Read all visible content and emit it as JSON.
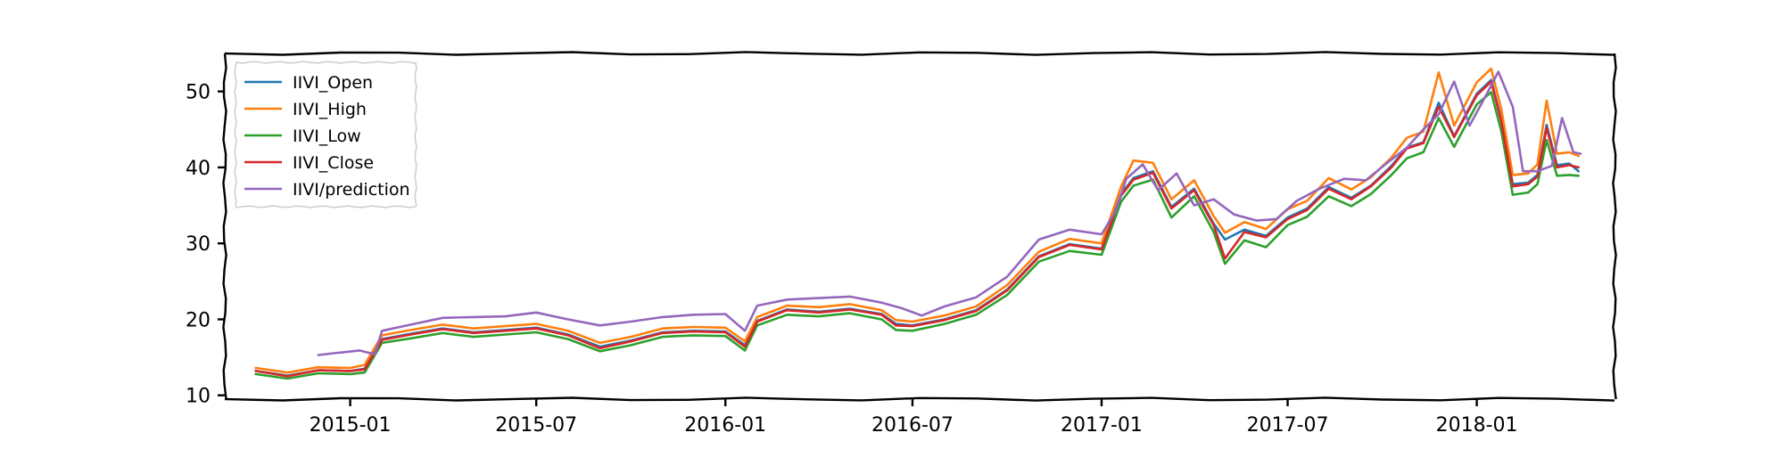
{
  "chart_data": {
    "type": "line",
    "x_type": "date",
    "xlim": [
      "2014-09-01",
      "2018-05-15"
    ],
    "ylim": [
      9.5,
      55.0
    ],
    "x_ticks": [
      "2015-01",
      "2015-07",
      "2016-01",
      "2016-07",
      "2017-01",
      "2017-07",
      "2018-01"
    ],
    "y_ticks": [
      10,
      20,
      30,
      40,
      50
    ],
    "grid": false,
    "legend_position": "top-left",
    "style": "xkcd",
    "series": [
      {
        "name": "IIVI_Open",
        "color": "#1f77b4",
        "x": [
          "2014-10-01",
          "2014-11-01",
          "2014-12-01",
          "2015-01-01",
          "2015-01-15",
          "2015-02-01",
          "2015-03-01",
          "2015-04-01",
          "2015-05-01",
          "2015-06-01",
          "2015-07-01",
          "2015-08-01",
          "2015-09-01",
          "2015-10-01",
          "2015-11-01",
          "2015-12-01",
          "2016-01-01",
          "2016-01-20",
          "2016-02-01",
          "2016-03-01",
          "2016-04-01",
          "2016-05-01",
          "2016-06-01",
          "2016-06-15",
          "2016-07-01",
          "2016-08-01",
          "2016-09-01",
          "2016-10-01",
          "2016-11-01",
          "2016-12-01",
          "2017-01-01",
          "2017-01-20",
          "2017-02-01",
          "2017-02-20",
          "2017-03-10",
          "2017-04-01",
          "2017-04-20",
          "2017-05-01",
          "2017-05-20",
          "2017-06-10",
          "2017-07-01",
          "2017-07-20",
          "2017-08-10",
          "2017-09-01",
          "2017-09-20",
          "2017-10-10",
          "2017-10-25",
          "2017-11-10",
          "2017-11-25",
          "2017-12-10",
          "2018-01-01",
          "2018-01-15",
          "2018-01-25",
          "2018-02-05",
          "2018-02-20",
          "2018-03-01",
          "2018-03-10",
          "2018-03-20",
          "2018-04-01",
          "2018-04-10"
        ],
        "y": [
          13.2,
          12.6,
          13.3,
          13.2,
          13.5,
          17.4,
          18.1,
          18.8,
          18.3,
          18.6,
          18.9,
          18.0,
          16.4,
          17.2,
          18.3,
          18.5,
          18.4,
          16.6,
          19.8,
          21.3,
          21.0,
          21.4,
          20.7,
          19.4,
          19.2,
          20.0,
          21.2,
          23.9,
          28.3,
          29.9,
          29.3,
          36.5,
          38.6,
          39.5,
          34.8,
          37.2,
          32.6,
          30.5,
          31.8,
          31.0,
          33.4,
          34.6,
          37.4,
          36.0,
          37.6,
          40.2,
          42.6,
          43.3,
          48.5,
          44.1,
          49.7,
          51.5,
          46.2,
          37.8,
          38.0,
          39.0,
          45.6,
          40.3,
          40.5,
          39.5
        ]
      },
      {
        "name": "IIVI_High",
        "color": "#ff7f0e",
        "x": [
          "2014-10-01",
          "2014-11-01",
          "2014-12-01",
          "2015-01-01",
          "2015-01-15",
          "2015-02-01",
          "2015-03-01",
          "2015-04-01",
          "2015-05-01",
          "2015-06-01",
          "2015-07-01",
          "2015-08-01",
          "2015-09-01",
          "2015-10-01",
          "2015-11-01",
          "2015-12-01",
          "2016-01-01",
          "2016-01-20",
          "2016-02-01",
          "2016-03-01",
          "2016-04-01",
          "2016-05-01",
          "2016-06-01",
          "2016-06-15",
          "2016-07-01",
          "2016-08-01",
          "2016-09-01",
          "2016-10-01",
          "2016-11-01",
          "2016-12-01",
          "2017-01-01",
          "2017-01-20",
          "2017-02-01",
          "2017-02-20",
          "2017-03-10",
          "2017-04-01",
          "2017-04-20",
          "2017-05-01",
          "2017-05-20",
          "2017-06-10",
          "2017-07-01",
          "2017-07-20",
          "2017-08-10",
          "2017-09-01",
          "2017-09-20",
          "2017-10-10",
          "2017-10-25",
          "2017-11-10",
          "2017-11-25",
          "2017-12-10",
          "2018-01-01",
          "2018-01-15",
          "2018-01-25",
          "2018-02-05",
          "2018-02-20",
          "2018-03-01",
          "2018-03-10",
          "2018-03-20",
          "2018-04-01",
          "2018-04-10"
        ],
        "y": [
          13.6,
          13.0,
          13.7,
          13.6,
          14.0,
          17.9,
          18.6,
          19.3,
          18.8,
          19.1,
          19.4,
          18.5,
          16.9,
          17.7,
          18.8,
          19.0,
          18.9,
          17.1,
          20.3,
          21.8,
          21.6,
          22.0,
          21.2,
          19.9,
          19.7,
          20.5,
          21.7,
          24.5,
          28.9,
          30.6,
          30.0,
          37.5,
          40.9,
          40.6,
          35.8,
          38.3,
          33.6,
          31.4,
          32.8,
          31.9,
          34.5,
          35.6,
          38.6,
          37.1,
          38.7,
          41.3,
          43.9,
          44.7,
          52.5,
          45.5,
          51.2,
          53.0,
          47.6,
          39.0,
          39.2,
          40.4,
          48.8,
          41.8,
          42.0,
          41.5
        ]
      },
      {
        "name": "IIVI_Low",
        "color": "#2ca02c",
        "x": [
          "2014-10-01",
          "2014-11-01",
          "2014-12-01",
          "2015-01-01",
          "2015-01-15",
          "2015-02-01",
          "2015-03-01",
          "2015-04-01",
          "2015-05-01",
          "2015-06-01",
          "2015-07-01",
          "2015-08-01",
          "2015-09-01",
          "2015-10-01",
          "2015-11-01",
          "2015-12-01",
          "2016-01-01",
          "2016-01-20",
          "2016-02-01",
          "2016-03-01",
          "2016-04-01",
          "2016-05-01",
          "2016-06-01",
          "2016-06-15",
          "2016-07-01",
          "2016-08-01",
          "2016-09-01",
          "2016-10-01",
          "2016-11-01",
          "2016-12-01",
          "2017-01-01",
          "2017-01-20",
          "2017-02-01",
          "2017-02-20",
          "2017-03-10",
          "2017-04-01",
          "2017-04-20",
          "2017-05-01",
          "2017-05-20",
          "2017-06-10",
          "2017-07-01",
          "2017-07-20",
          "2017-08-10",
          "2017-09-01",
          "2017-09-20",
          "2017-10-10",
          "2017-10-25",
          "2017-11-10",
          "2017-11-25",
          "2017-12-10",
          "2018-01-01",
          "2018-01-15",
          "2018-01-25",
          "2018-02-05",
          "2018-02-20",
          "2018-03-01",
          "2018-03-10",
          "2018-03-20",
          "2018-04-01",
          "2018-04-10"
        ],
        "y": [
          12.8,
          12.2,
          12.9,
          12.8,
          13.0,
          16.9,
          17.5,
          18.2,
          17.7,
          18.0,
          18.3,
          17.4,
          15.8,
          16.6,
          17.7,
          17.9,
          17.8,
          15.9,
          19.2,
          20.6,
          20.4,
          20.8,
          20.0,
          18.6,
          18.5,
          19.4,
          20.6,
          23.2,
          27.6,
          29.0,
          28.5,
          35.5,
          37.6,
          38.4,
          33.4,
          36.2,
          31.5,
          27.3,
          30.4,
          29.5,
          32.4,
          33.5,
          36.2,
          34.9,
          36.5,
          39.0,
          41.2,
          42.0,
          46.5,
          42.7,
          48.3,
          49.9,
          44.7,
          36.4,
          36.7,
          37.8,
          43.6,
          38.9,
          39.0,
          38.9
        ]
      },
      {
        "name": "IIVI_Close",
        "color": "#d62728",
        "x": [
          "2014-10-01",
          "2014-11-01",
          "2014-12-01",
          "2015-01-01",
          "2015-01-15",
          "2015-02-01",
          "2015-03-01",
          "2015-04-01",
          "2015-05-01",
          "2015-06-01",
          "2015-07-01",
          "2015-08-01",
          "2015-09-01",
          "2015-10-01",
          "2015-11-01",
          "2015-12-01",
          "2016-01-01",
          "2016-01-20",
          "2016-02-01",
          "2016-03-01",
          "2016-04-01",
          "2016-05-01",
          "2016-06-01",
          "2016-06-15",
          "2016-07-01",
          "2016-08-01",
          "2016-09-01",
          "2016-10-01",
          "2016-11-01",
          "2016-12-01",
          "2017-01-01",
          "2017-01-20",
          "2017-02-01",
          "2017-02-20",
          "2017-03-10",
          "2017-04-01",
          "2017-04-20",
          "2017-05-01",
          "2017-05-20",
          "2017-06-10",
          "2017-07-01",
          "2017-07-20",
          "2017-08-10",
          "2017-09-01",
          "2017-09-20",
          "2017-10-10",
          "2017-10-25",
          "2017-11-10",
          "2017-11-25",
          "2017-12-10",
          "2018-01-01",
          "2018-01-15",
          "2018-01-25",
          "2018-02-05",
          "2018-02-20",
          "2018-03-01",
          "2018-03-10",
          "2018-03-20",
          "2018-04-01",
          "2018-04-10"
        ],
        "y": [
          13.2,
          12.5,
          13.3,
          13.2,
          13.4,
          17.3,
          18.0,
          18.7,
          18.2,
          18.5,
          18.8,
          17.9,
          16.2,
          17.1,
          18.2,
          18.4,
          18.3,
          16.4,
          19.7,
          21.2,
          20.9,
          21.3,
          20.6,
          19.2,
          19.1,
          19.9,
          21.1,
          23.8,
          28.2,
          29.8,
          29.2,
          36.3,
          38.4,
          39.3,
          34.6,
          37.0,
          32.4,
          28.0,
          31.5,
          30.8,
          33.2,
          34.4,
          37.2,
          35.8,
          37.5,
          40.0,
          42.5,
          43.2,
          48.0,
          44.0,
          49.5,
          51.3,
          46.0,
          37.5,
          37.8,
          38.8,
          45.2,
          40.0,
          40.3,
          40.0
        ]
      },
      {
        "name": "IIVI/prediction",
        "color": "#9467bd",
        "x": [
          "2014-12-01",
          "2014-12-20",
          "2015-01-10",
          "2015-01-25",
          "2015-02-01",
          "2015-03-01",
          "2015-04-01",
          "2015-05-01",
          "2015-06-01",
          "2015-07-01",
          "2015-08-01",
          "2015-09-01",
          "2015-10-01",
          "2015-11-01",
          "2015-12-01",
          "2016-01-01",
          "2016-01-20",
          "2016-02-01",
          "2016-03-01",
          "2016-04-01",
          "2016-05-01",
          "2016-06-01",
          "2016-06-20",
          "2016-07-10",
          "2016-08-01",
          "2016-09-01",
          "2016-10-01",
          "2016-11-01",
          "2016-12-01",
          "2017-01-01",
          "2017-01-15",
          "2017-01-25",
          "2017-02-10",
          "2017-02-25",
          "2017-03-15",
          "2017-04-01",
          "2017-04-20",
          "2017-05-10",
          "2017-06-01",
          "2017-06-20",
          "2017-07-10",
          "2017-08-01",
          "2017-08-25",
          "2017-09-15",
          "2017-10-05",
          "2017-10-25",
          "2017-11-10",
          "2017-11-25",
          "2017-12-10",
          "2017-12-25",
          "2018-01-10",
          "2018-01-22",
          "2018-02-05",
          "2018-02-15",
          "2018-03-01",
          "2018-03-15",
          "2018-03-25",
          "2018-04-05",
          "2018-04-12"
        ],
        "y": [
          15.3,
          15.6,
          15.9,
          15.4,
          18.5,
          19.3,
          20.2,
          20.3,
          20.4,
          20.9,
          20.0,
          19.2,
          19.7,
          20.3,
          20.6,
          20.7,
          18.5,
          21.8,
          22.6,
          22.8,
          23.0,
          22.2,
          21.5,
          20.5,
          21.7,
          22.9,
          25.6,
          30.5,
          31.8,
          31.2,
          34.3,
          38.5,
          40.4,
          37.0,
          39.2,
          35.0,
          35.8,
          33.8,
          33.0,
          33.2,
          35.6,
          37.2,
          38.5,
          38.3,
          40.5,
          42.6,
          45.0,
          47.0,
          51.3,
          45.5,
          49.5,
          52.6,
          48.0,
          39.5,
          39.5,
          40.2,
          46.5,
          42.0,
          41.8
        ]
      }
    ]
  }
}
